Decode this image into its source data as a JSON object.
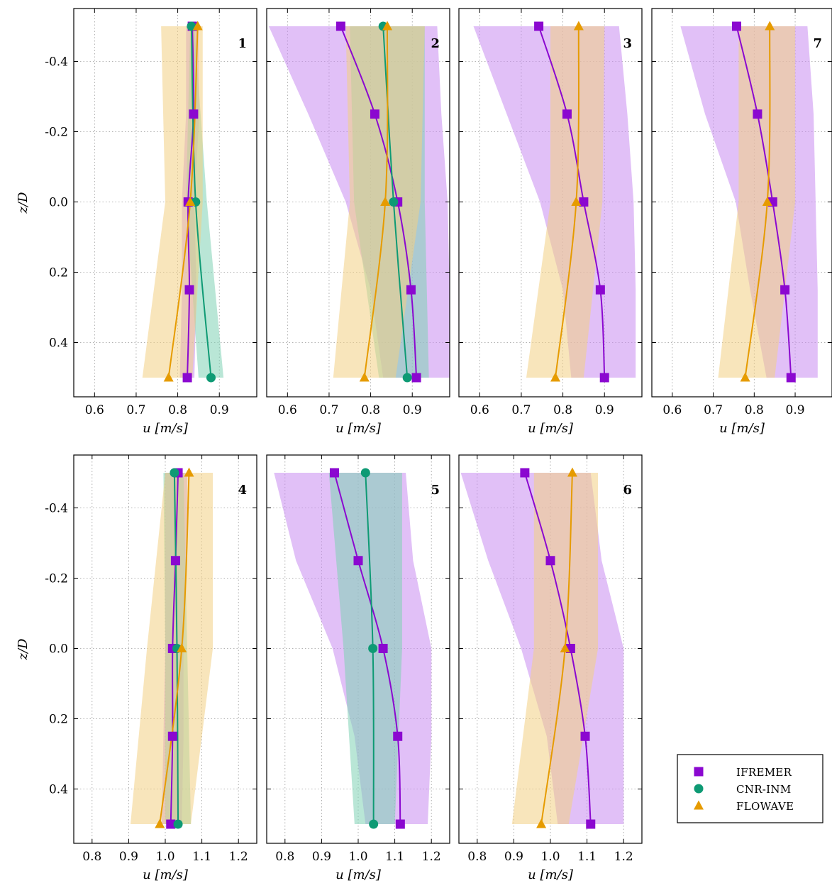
{
  "colors": {
    "ifremer": "#8b08d0",
    "cnr": "#0e9a74",
    "flowave": "#e69b00",
    "ifremer_band": "#c98cf0",
    "cnr_band": "#7fd2b4",
    "flowave_band": "#f3cf83"
  },
  "legend": {
    "entries": [
      {
        "label": "IFREMER",
        "marker": "square",
        "color": "#8b08d0"
      },
      {
        "label": "CNR-INM",
        "marker": "circle",
        "color": "#0e9a74"
      },
      {
        "label": "FLOWAVE",
        "marker": "triangle",
        "color": "#e69b00"
      }
    ]
  },
  "chart_data": [
    {
      "type": "line",
      "panel_number": "1",
      "xlabel": "u [m/s]",
      "ylabel": "z/D",
      "xlim": [
        0.55,
        0.99
      ],
      "ylim": [
        -0.52,
        0.52
      ],
      "y_inverted": true,
      "xticks": [
        "0.6",
        "0.7",
        "0.8",
        "0.9"
      ],
      "yticks": [
        "-0.4",
        "-0.2",
        "0.0",
        "0.2",
        "0.4"
      ],
      "grid": true,
      "series": [
        {
          "name": "IFREMER",
          "z": [
            -0.5,
            -0.25,
            0.0,
            0.25,
            0.5
          ],
          "u": [
            0.835,
            0.838,
            0.825,
            0.828,
            0.823
          ],
          "band_lo": [
            0.82,
            0.82,
            0.81,
            0.81,
            0.805
          ],
          "band_hi": [
            0.85,
            0.852,
            0.84,
            0.845,
            0.84
          ]
        },
        {
          "name": "CNR-INM",
          "z": [
            -0.5,
            0.0,
            0.5
          ],
          "u": [
            0.833,
            0.843,
            0.88
          ],
          "band_lo": [
            0.83,
            0.82,
            0.85
          ],
          "band_hi": [
            0.84,
            0.87,
            0.91
          ]
        },
        {
          "name": "FLOWAVE",
          "z": [
            -0.5,
            0.0,
            0.5
          ],
          "u": [
            0.848,
            0.83,
            0.778
          ],
          "band_lo": [
            0.76,
            0.77,
            0.715
          ],
          "band_hi": [
            0.86,
            0.86,
            0.835
          ]
        }
      ]
    },
    {
      "type": "line",
      "panel_number": "2",
      "xlabel": "u [m/s]",
      "ylabel": "",
      "xlim": [
        0.55,
        0.99
      ],
      "ylim": [
        -0.52,
        0.52
      ],
      "y_inverted": true,
      "xticks": [
        "0.6",
        "0.7",
        "0.8",
        "0.9"
      ],
      "yticks": [],
      "grid": true,
      "series": [
        {
          "name": "IFREMER",
          "z": [
            -0.5,
            -0.25,
            0.0,
            0.25,
            0.5
          ],
          "u": [
            0.728,
            0.81,
            0.865,
            0.897,
            0.91
          ],
          "band_lo": [
            0.555,
            0.65,
            0.74,
            0.8,
            0.83
          ],
          "band_hi": [
            0.96,
            0.97,
            0.985,
            0.99,
            0.99
          ]
        },
        {
          "name": "CNR-INM",
          "z": [
            -0.5,
            0.0,
            0.5
          ],
          "u": [
            0.83,
            0.855,
            0.888
          ],
          "band_lo": [
            0.75,
            0.76,
            0.82
          ],
          "band_hi": [
            0.93,
            0.93,
            0.94
          ]
        },
        {
          "name": "FLOWAVE",
          "z": [
            -0.5,
            0.0,
            0.5
          ],
          "u": [
            0.84,
            0.835,
            0.785
          ],
          "band_lo": [
            0.74,
            0.75,
            0.71
          ],
          "band_hi": [
            0.93,
            0.92,
            0.86
          ]
        }
      ]
    },
    {
      "type": "line",
      "panel_number": "3",
      "xlabel": "u [m/s]",
      "ylabel": "",
      "xlim": [
        0.55,
        0.99
      ],
      "ylim": [
        -0.52,
        0.52
      ],
      "y_inverted": true,
      "xticks": [
        "0.6",
        "0.7",
        "0.8",
        "0.9"
      ],
      "yticks": [],
      "grid": true,
      "series": [
        {
          "name": "IFREMER",
          "z": [
            -0.5,
            -0.25,
            0.0,
            0.25,
            0.5
          ],
          "u": [
            0.742,
            0.81,
            0.85,
            0.89,
            0.9
          ],
          "band_lo": [
            0.585,
            0.665,
            0.745,
            0.8,
            0.82
          ],
          "band_hi": [
            0.935,
            0.955,
            0.97,
            0.975,
            0.975
          ]
        },
        {
          "name": "FLOWAVE",
          "z": [
            -0.5,
            0.0,
            0.5
          ],
          "u": [
            0.838,
            0.832,
            0.782
          ],
          "band_lo": [
            0.77,
            0.77,
            0.712
          ],
          "band_hi": [
            0.9,
            0.895,
            0.85
          ]
        }
      ]
    },
    {
      "type": "line",
      "panel_number": "7",
      "xlabel": "u [m/s]",
      "ylabel": "",
      "xlim": [
        0.55,
        0.99
      ],
      "ylim": [
        -0.52,
        0.52
      ],
      "y_inverted": true,
      "xticks": [
        "0.6",
        "0.7",
        "0.8",
        "0.9"
      ],
      "yticks": [],
      "grid": true,
      "series": [
        {
          "name": "IFREMER",
          "z": [
            -0.5,
            -0.25,
            0.0,
            0.25,
            0.5
          ],
          "u": [
            0.757,
            0.808,
            0.845,
            0.875,
            0.89
          ],
          "band_lo": [
            0.62,
            0.68,
            0.755,
            0.79,
            0.83
          ],
          "band_hi": [
            0.93,
            0.945,
            0.95,
            0.955,
            0.955
          ]
        },
        {
          "name": "FLOWAVE",
          "z": [
            -0.5,
            0.0,
            0.5
          ],
          "u": [
            0.838,
            0.832,
            0.778
          ],
          "band_lo": [
            0.762,
            0.762,
            0.712
          ],
          "band_hi": [
            0.9,
            0.9,
            0.85
          ]
        }
      ]
    },
    {
      "type": "line",
      "panel_number": "4",
      "xlabel": "u [m/s]",
      "ylabel": "z/D",
      "xlim": [
        0.75,
        1.25
      ],
      "ylim": [
        -0.52,
        0.52
      ],
      "y_inverted": true,
      "xticks": [
        "0.8",
        "0.9",
        "1.0",
        "1.1",
        "1.2"
      ],
      "yticks": [
        "-0.4",
        "-0.2",
        "0.0",
        "0.2",
        "0.4"
      ],
      "grid": true,
      "series": [
        {
          "name": "IFREMER",
          "z": [
            -0.5,
            -0.25,
            0.0,
            0.25,
            0.5
          ],
          "u": [
            1.035,
            1.028,
            1.02,
            1.02,
            1.015
          ],
          "band_lo": [
            1.0,
            1.0,
            1.0,
            0.995,
            0.99
          ],
          "band_hi": [
            1.06,
            1.06,
            1.05,
            1.05,
            1.045
          ]
        },
        {
          "name": "CNR-INM",
          "z": [
            -0.5,
            0.0,
            0.5
          ],
          "u": [
            1.025,
            1.032,
            1.035
          ],
          "band_lo": [
            0.995,
            1.0,
            1.0
          ],
          "band_hi": [
            1.05,
            1.06,
            1.07
          ]
        },
        {
          "name": "FLOWAVE",
          "z": [
            -0.5,
            0.0,
            0.5
          ],
          "u": [
            1.065,
            1.045,
            0.985
          ],
          "band_lo": [
            1.0,
            0.95,
            0.905
          ],
          "band_hi": [
            1.13,
            1.13,
            1.07
          ]
        }
      ]
    },
    {
      "type": "line",
      "panel_number": "5",
      "xlabel": "u [m/s]",
      "ylabel": "",
      "xlim": [
        0.75,
        1.25
      ],
      "ylim": [
        -0.52,
        0.52
      ],
      "y_inverted": true,
      "xticks": [
        "0.8",
        "0.9",
        "1.0",
        "1.1",
        "1.2"
      ],
      "yticks": [],
      "grid": true,
      "series": [
        {
          "name": "IFREMER",
          "z": [
            -0.5,
            -0.25,
            0.0,
            0.25,
            0.5
          ],
          "u": [
            0.935,
            1.0,
            1.068,
            1.108,
            1.115
          ],
          "band_lo": [
            0.77,
            0.83,
            0.93,
            0.99,
            1.02
          ],
          "band_hi": [
            1.13,
            1.15,
            1.2,
            1.2,
            1.19
          ]
        },
        {
          "name": "CNR-INM",
          "z": [
            -0.5,
            0.0,
            0.5
          ],
          "u": [
            1.02,
            1.04,
            1.042
          ],
          "band_lo": [
            0.92,
            0.96,
            0.99
          ],
          "band_hi": [
            1.12,
            1.12,
            1.1
          ]
        }
      ]
    },
    {
      "type": "line",
      "panel_number": "6",
      "xlabel": "u [m/s]",
      "ylabel": "",
      "xlim": [
        0.75,
        1.25
      ],
      "ylim": [
        -0.52,
        0.52
      ],
      "y_inverted": true,
      "xticks": [
        "0.8",
        "0.9",
        "1.0",
        "1.1",
        "1.2"
      ],
      "yticks": [],
      "grid": true,
      "series": [
        {
          "name": "IFREMER",
          "z": [
            -0.5,
            -0.25,
            0.0,
            0.25,
            0.5
          ],
          "u": [
            0.93,
            1.0,
            1.055,
            1.095,
            1.11
          ],
          "band_lo": [
            0.755,
            0.83,
            0.92,
            0.99,
            1.02
          ],
          "band_hi": [
            1.11,
            1.14,
            1.2,
            1.2,
            1.2
          ]
        },
        {
          "name": "FLOWAVE",
          "z": [
            -0.5,
            0.0,
            0.5
          ],
          "u": [
            1.06,
            1.04,
            0.975
          ],
          "band_lo": [
            0.955,
            0.955,
            0.895
          ],
          "band_hi": [
            1.13,
            1.13,
            1.05
          ]
        }
      ]
    }
  ]
}
